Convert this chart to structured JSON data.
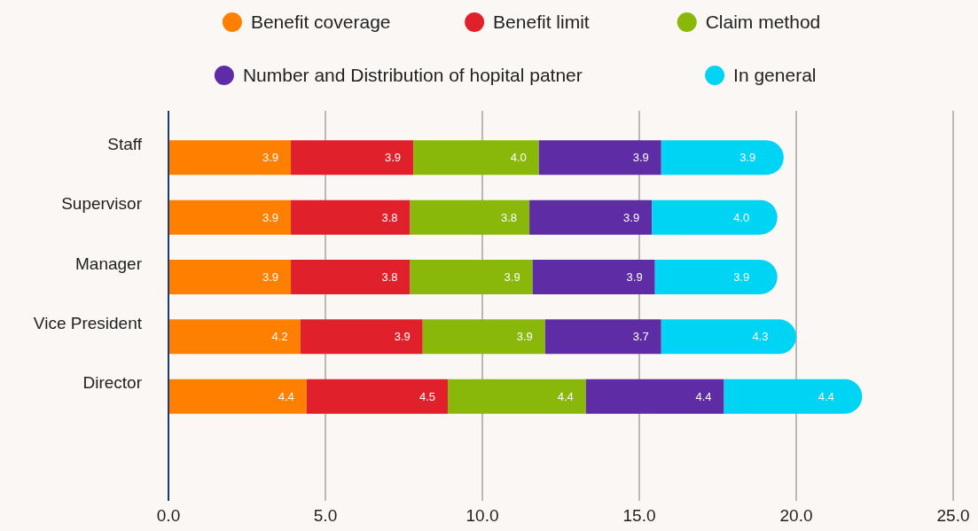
{
  "chart_data": {
    "type": "bar",
    "orientation": "horizontal",
    "stacked": true,
    "data_labels": true,
    "grid": "x",
    "legend": "top",
    "categories": [
      "Staff",
      "Supervisor",
      "Manager",
      "Vice President",
      "Director"
    ],
    "series": [
      {
        "name": "Benefit coverage",
        "color": "#ff7f00",
        "values": [
          3.9,
          3.9,
          3.9,
          4.2,
          4.4
        ]
      },
      {
        "name": "Benefit limit",
        "color": "#e0202a",
        "values": [
          3.9,
          3.8,
          3.8,
          3.9,
          4.5
        ]
      },
      {
        "name": "Claim method",
        "color": "#8ab80a",
        "values": [
          4.0,
          3.8,
          3.9,
          3.9,
          4.4
        ],
        "value_labels": [
          "4.0",
          "3.8",
          "3.9",
          "3.9",
          "4.4"
        ]
      },
      {
        "name": "Number and Distribution of hopital patner",
        "color": "#5e2ca5",
        "values": [
          3.9,
          3.9,
          3.9,
          3.7,
          4.4
        ]
      },
      {
        "name": "In general",
        "color": "#00d4f5",
        "values": [
          3.9,
          4.0,
          3.9,
          4.3,
          4.4
        ],
        "value_labels": [
          "3.9",
          "4.0",
          "3.9",
          "4.3",
          "4.4"
        ]
      }
    ],
    "xlim": [
      0,
      25
    ],
    "xticks": [
      {
        "value": 0,
        "label": "0.0"
      },
      {
        "value": 5,
        "label": "5.0"
      },
      {
        "value": 10,
        "label": "10.0"
      },
      {
        "value": 15,
        "label": "15.0"
      },
      {
        "value": 20,
        "label": "20.0"
      },
      {
        "value": 25,
        "label": "25.0"
      }
    ]
  }
}
